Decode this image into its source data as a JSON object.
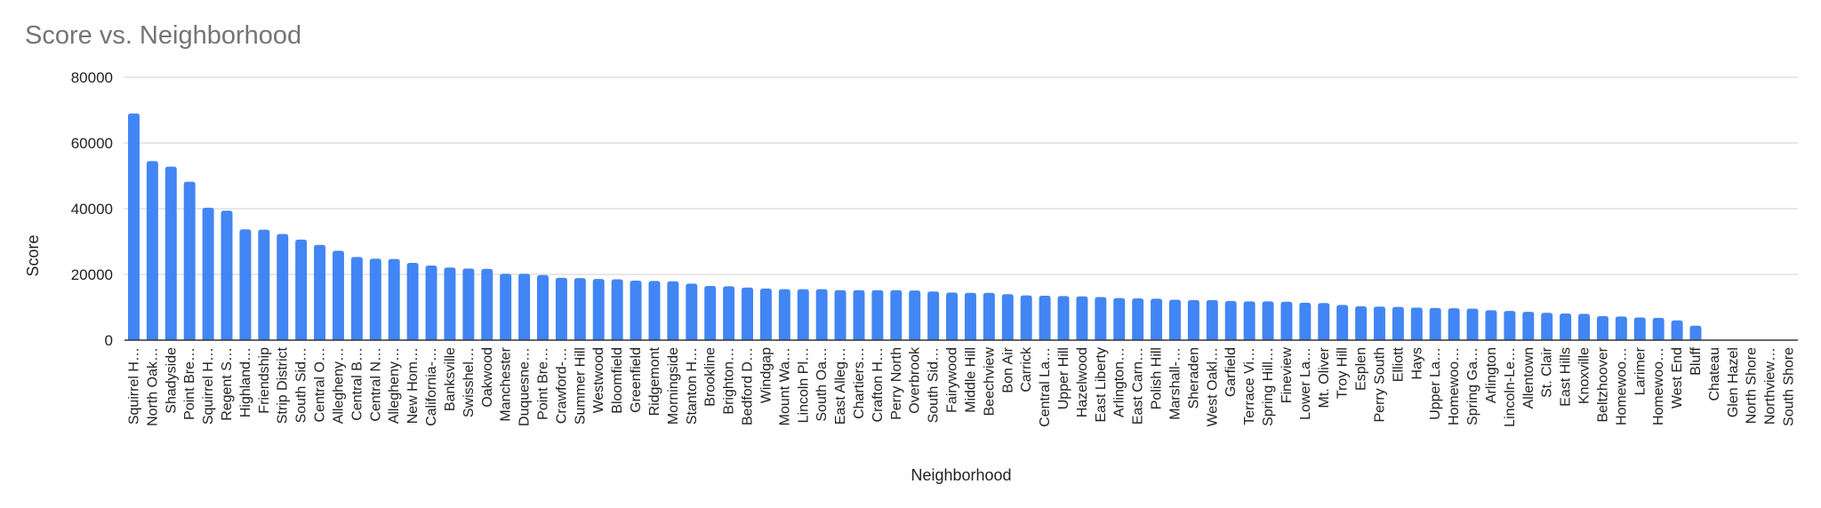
{
  "chart_data": {
    "type": "bar",
    "title": "Score vs. Neighborhood",
    "xlabel": "Neighborhood",
    "ylabel": "Score",
    "ylim": [
      0,
      80000
    ],
    "yticks": [
      "0",
      "20000",
      "40000",
      "60000",
      "80000"
    ],
    "grid": true,
    "legend": "none",
    "bar_color": "#4285f4",
    "categories": [
      "Squirrel H…",
      "North Oak…",
      "Shadyside",
      "Point Bre…",
      "Squirrel H…",
      "Regent S…",
      "Highland…",
      "Friendship",
      "Strip District",
      "South Sid…",
      "Central O…",
      "Allegheny…",
      "Central B…",
      "Central N…",
      "Allegheny…",
      "New Hom…",
      "California-…",
      "Banksville",
      "Swisshel…",
      "Oakwood",
      "Manchester",
      "Duquesne…",
      "Point Bre…",
      "Crawford-…",
      "Summer Hill",
      "Westwood",
      "Bloomfield",
      "Greenfield",
      "Ridgemont",
      "Morningside",
      "Stanton H…",
      "Brookline",
      "Brighton…",
      "Bedford D…",
      "Windgap",
      "Mount Wa…",
      "Lincoln Pl…",
      "South Oa…",
      "East Alleg…",
      "Chartiers…",
      "Crafton H…",
      "Perry North",
      "Overbrook",
      "South Sid…",
      "Fairywood",
      "Middle Hill",
      "Beechview",
      "Bon Air",
      "Carrick",
      "Central La…",
      "Upper Hill",
      "Hazelwood",
      "East Liberty",
      "Arlington…",
      "East Carn…",
      "Polish Hill",
      "Marshall-…",
      "Sheraden",
      "West Oakl…",
      "Garfield",
      "Terrace Vi…",
      "Spring Hill…",
      "Fineview",
      "Lower La…",
      "Mt. Oliver",
      "Troy Hill",
      "Esplen",
      "Perry South",
      "Elliott",
      "Hays",
      "Upper La…",
      "Homewoo…",
      "Spring Ga…",
      "Arlington",
      "Lincoln-Le…",
      "Allentown",
      "St. Clair",
      "East Hills",
      "Knoxville",
      "Beltzhoover",
      "Homewoo…",
      "Larimer",
      "Homewoo…",
      "West End",
      "Bluff",
      "Chateau",
      "Glen Hazel",
      "North Shore",
      "Northview…",
      "South Shore"
    ],
    "values": [
      69000,
      54500,
      52800,
      48200,
      40300,
      39400,
      33700,
      33600,
      32300,
      30600,
      29000,
      27200,
      25300,
      24800,
      24700,
      23500,
      22700,
      22100,
      21800,
      21700,
      20200,
      20200,
      19800,
      19000,
      18900,
      18600,
      18500,
      18100,
      18000,
      17900,
      17200,
      16500,
      16400,
      16000,
      15700,
      15500,
      15500,
      15500,
      15200,
      15200,
      15200,
      15200,
      15100,
      14800,
      14500,
      14400,
      14400,
      14000,
      13600,
      13500,
      13400,
      13300,
      13100,
      12800,
      12700,
      12600,
      12300,
      12200,
      12200,
      11900,
      11800,
      11800,
      11700,
      11400,
      11300,
      10700,
      10300,
      10200,
      10100,
      9900,
      9800,
      9700,
      9600,
      9100,
      8900,
      8600,
      8300,
      8100,
      8000,
      7300,
      7200,
      6900,
      6800,
      6000,
      4400,
      0,
      0,
      0,
      0,
      0
    ]
  }
}
